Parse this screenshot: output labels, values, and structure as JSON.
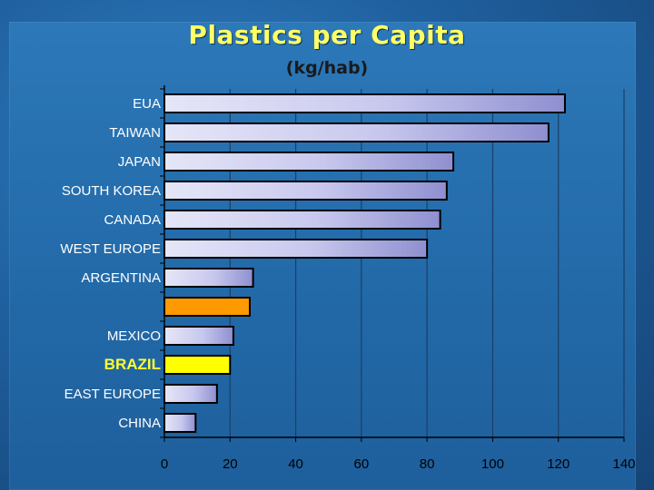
{
  "chart_data": {
    "type": "bar",
    "orientation": "horizontal",
    "title": "Plastics per Capita",
    "subtitle": "(kg/hab)",
    "categories": [
      "EUA",
      "TAIWAN",
      "JAPAN",
      "SOUTH KOREA",
      "CANADA",
      "WEST EUROPE",
      "ARGENTINA",
      "",
      "MEXICO",
      "BRAZIL",
      "EAST EUROPE",
      "CHINA"
    ],
    "values": [
      122,
      117,
      88,
      86,
      84,
      80,
      27,
      26,
      21,
      20,
      16,
      9.5
    ],
    "xticks": [
      0,
      20,
      40,
      60,
      80,
      100,
      120,
      140
    ],
    "xlim": [
      0,
      140
    ],
    "grid": true,
    "highlight": {
      "BRAZIL": "#ffff00",
      "": "#ff9900"
    },
    "colors": {
      "bar_default": "#b8b8e8",
      "bar_highlight_yellow": "#ffff00",
      "bar_highlight_orange": "#ff9900",
      "brazil_label": "#ffff33",
      "title": "#ffff66"
    }
  }
}
